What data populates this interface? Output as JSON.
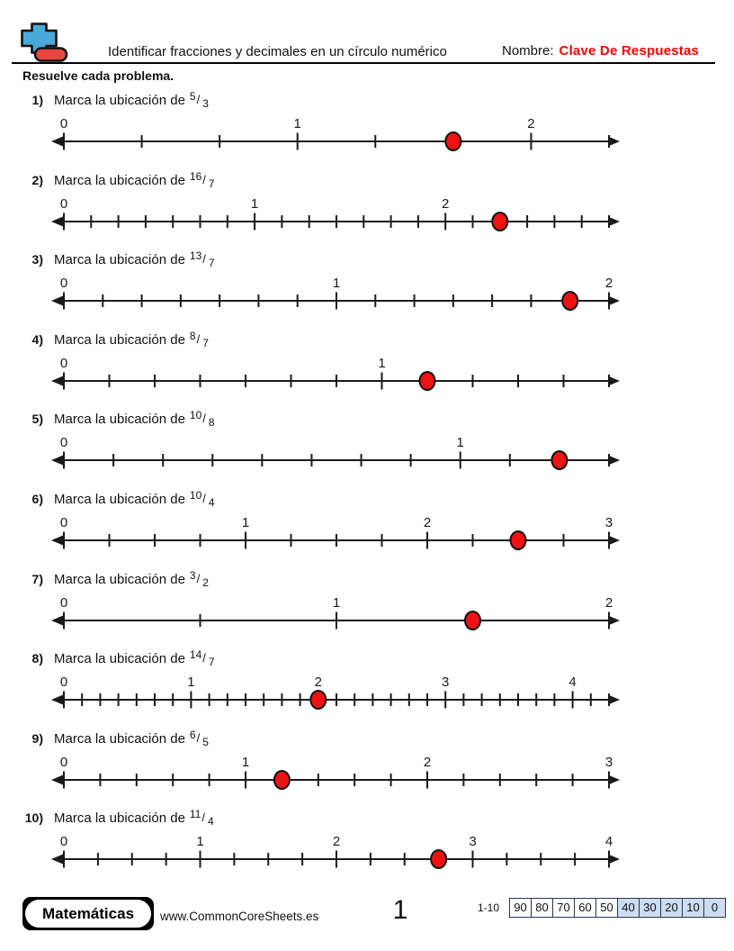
{
  "header": {
    "title": "Identificar fracciones y decimales en un círculo numérico",
    "name_label": "Nombre:",
    "answer_key": "Clave De Respuestas",
    "instruction": "Resuelve cada problema."
  },
  "text": {
    "prompt": "Marca la ubicación de",
    "fraction_slash": "/"
  },
  "problems": [
    {
      "id": "1)",
      "num": 5,
      "den": 3,
      "answer_value": 1.6667,
      "tick_steps": 7,
      "labels": [
        0,
        1,
        2
      ]
    },
    {
      "id": "2)",
      "num": 16,
      "den": 7,
      "answer_value": 2.2857,
      "tick_steps": 20,
      "labels": [
        0,
        1,
        2
      ]
    },
    {
      "id": "3)",
      "num": 13,
      "den": 7,
      "answer_value": 1.8571,
      "tick_steps": 14,
      "labels": [
        0,
        1,
        2
      ]
    },
    {
      "id": "4)",
      "num": 8,
      "den": 7,
      "answer_value": 1.1429,
      "tick_steps": 12,
      "labels": [
        0,
        1
      ]
    },
    {
      "id": "5)",
      "num": 10,
      "den": 8,
      "answer_value": 1.25,
      "tick_steps": 11,
      "labels": [
        0,
        1
      ]
    },
    {
      "id": "6)",
      "num": 10,
      "den": 4,
      "answer_value": 2.5,
      "tick_steps": 12,
      "labels": [
        0,
        1,
        2,
        3
      ]
    },
    {
      "id": "7)",
      "num": 3,
      "den": 2,
      "answer_value": 1.5,
      "tick_steps": 4,
      "labels": [
        0,
        1,
        2
      ]
    },
    {
      "id": "8)",
      "num": 14,
      "den": 7,
      "answer_value": 2.0,
      "tick_steps": 30,
      "labels": [
        0,
        1,
        2,
        3,
        4
      ]
    },
    {
      "id": "9)",
      "num": 6,
      "den": 5,
      "answer_value": 1.2,
      "tick_steps": 15,
      "labels": [
        0,
        1,
        2,
        3
      ]
    },
    {
      "id": "10)",
      "num": 11,
      "den": 4,
      "answer_value": 2.75,
      "tick_steps": 16,
      "labels": [
        0,
        1,
        2,
        3,
        4
      ]
    }
  ],
  "footer": {
    "brand": "Matemáticas",
    "website": "www.CommonCoreSheets.es",
    "page_number": "1",
    "score_label": "1-10",
    "score_cells": [
      "90",
      "80",
      "70",
      "60",
      "50",
      "40",
      "30",
      "20",
      "10",
      "0"
    ],
    "score_highlight_from_index": 5,
    "score_highlight_color": "#ccdcf2"
  },
  "colors": {
    "dot_red": "#ee1212",
    "answer_red": "#fb0000",
    "logo_blue": "#4aa9db",
    "logo_red": "#e8473f",
    "line_black": "#1a1a1a"
  }
}
